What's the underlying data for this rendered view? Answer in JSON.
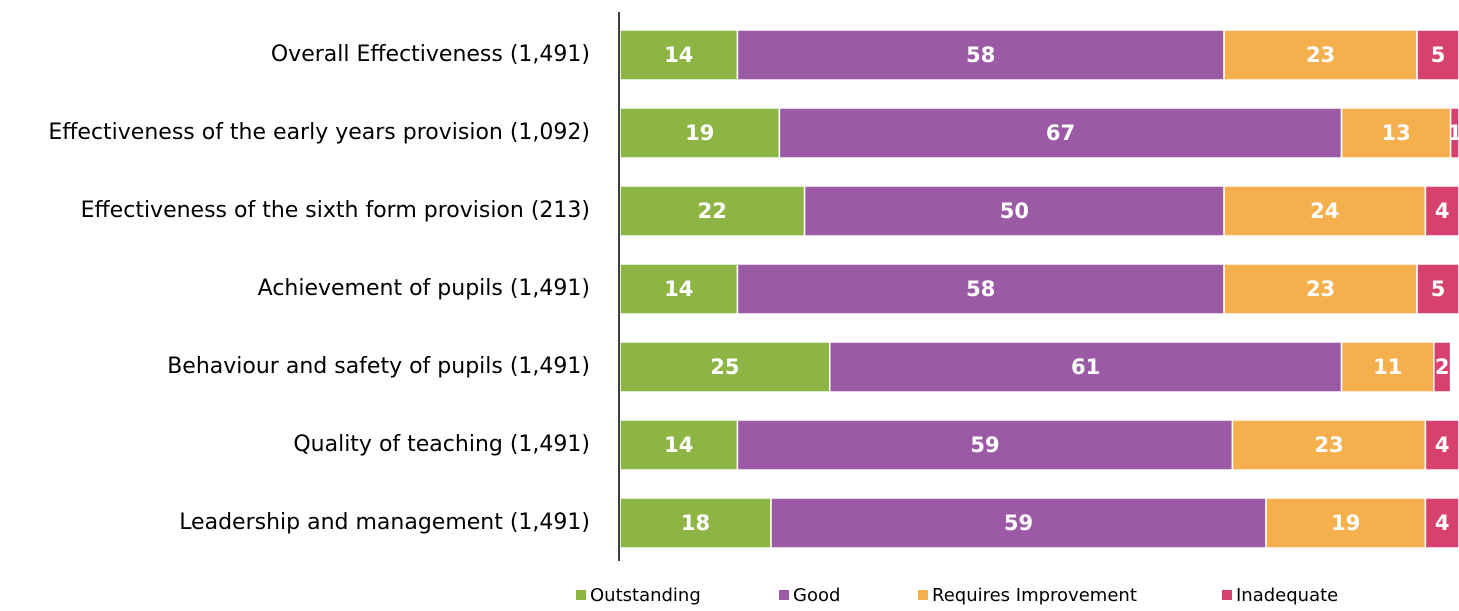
{
  "chart_data": {
    "type": "bar",
    "orientation": "horizontal",
    "stacked": true,
    "categories": [
      "Overall Effectiveness (1,491)",
      "Effectiveness of the early years provision (1,092)",
      "Effectiveness of the sixth form provision (213)",
      "Achievement of pupils (1,491)",
      "Behaviour and safety of pupils (1,491)",
      "Quality of teaching (1,491)",
      "Leadership and management (1,491)"
    ],
    "series": [
      {
        "name": "Outstanding",
        "color": "#8db543",
        "values": [
          14,
          19,
          22,
          14,
          25,
          14,
          18
        ]
      },
      {
        "name": "Good",
        "color": "#9b59a6",
        "values": [
          58,
          67,
          50,
          58,
          61,
          59,
          59
        ]
      },
      {
        "name": "Requires Improvement",
        "color": "#f5b04d",
        "values": [
          23,
          13,
          24,
          23,
          11,
          23,
          19
        ]
      },
      {
        "name": "Inadequate",
        "color": "#d6416e",
        "values": [
          5,
          1,
          4,
          5,
          2,
          4,
          4
        ]
      }
    ],
    "xlim": [
      0,
      100
    ],
    "title": "",
    "xlabel": "",
    "ylabel": "",
    "grid": false,
    "legend": "bottom"
  }
}
